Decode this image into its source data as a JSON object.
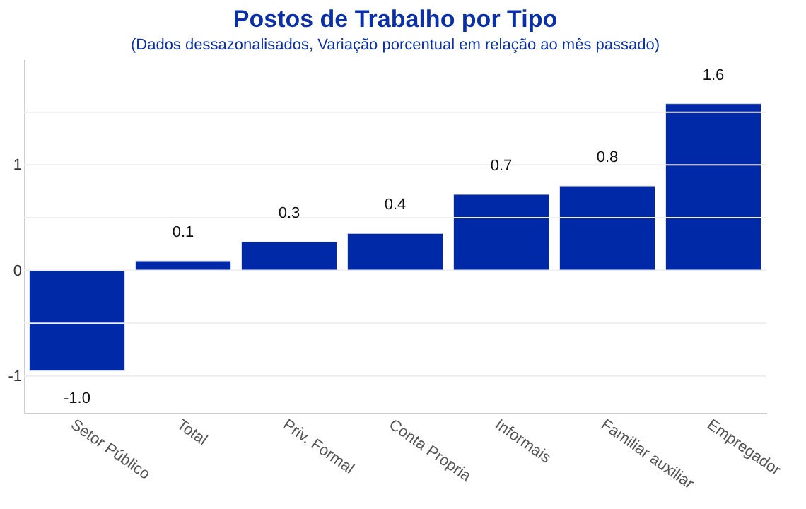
{
  "chart_data": {
    "type": "bar",
    "title": "Postos de Trabalho por Tipo",
    "subtitle": "(Dados dessazonalisados, Variação porcentual em relação ao mês passado)",
    "categories": [
      "Setor Público",
      "Total",
      "Priv. Formal",
      "Conta Propria",
      "Informais",
      "Familiar auxiliar",
      "Empregador"
    ],
    "values": [
      -0.95,
      0.09,
      0.27,
      0.35,
      0.72,
      0.8,
      1.58
    ],
    "value_labels": [
      "-1.0",
      "0.1",
      "0.3",
      "0.4",
      "0.7",
      "0.8",
      "1.6"
    ],
    "color": "#0029a8",
    "ylim": [
      -1.35,
      2.0
    ],
    "yticks": [
      {
        "value": -1,
        "label": "-1"
      },
      {
        "value": -0.5,
        "label": null
      },
      0,
      {
        "value": 0.5,
        "label": null
      },
      1,
      {
        "value": 1.5,
        "label": null
      }
    ],
    "grid": "y"
  }
}
